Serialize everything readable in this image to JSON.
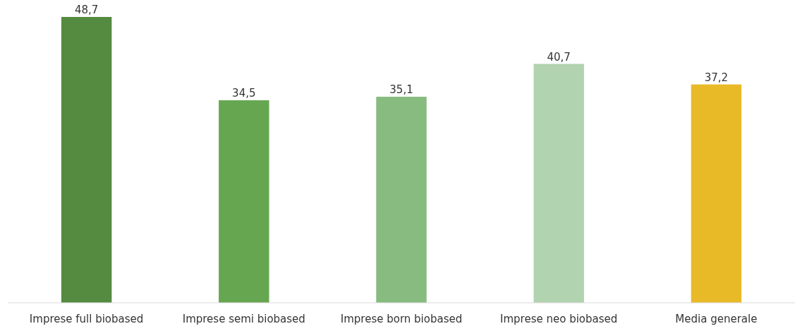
{
  "chart_data": {
    "type": "bar",
    "categories": [
      "Imprese full biobased",
      "Imprese semi biobased",
      "Imprese born biobased",
      "Imprese neo biobased",
      "Media generale"
    ],
    "values": [
      48.7,
      34.5,
      35.1,
      40.7,
      37.2
    ],
    "value_labels": [
      "48,7",
      "34,5",
      "35,1",
      "40,7",
      "37,2"
    ],
    "colors": [
      "#548b40",
      "#66a650",
      "#87bb80",
      "#b2d3b0",
      "#e8ba28"
    ]
  }
}
